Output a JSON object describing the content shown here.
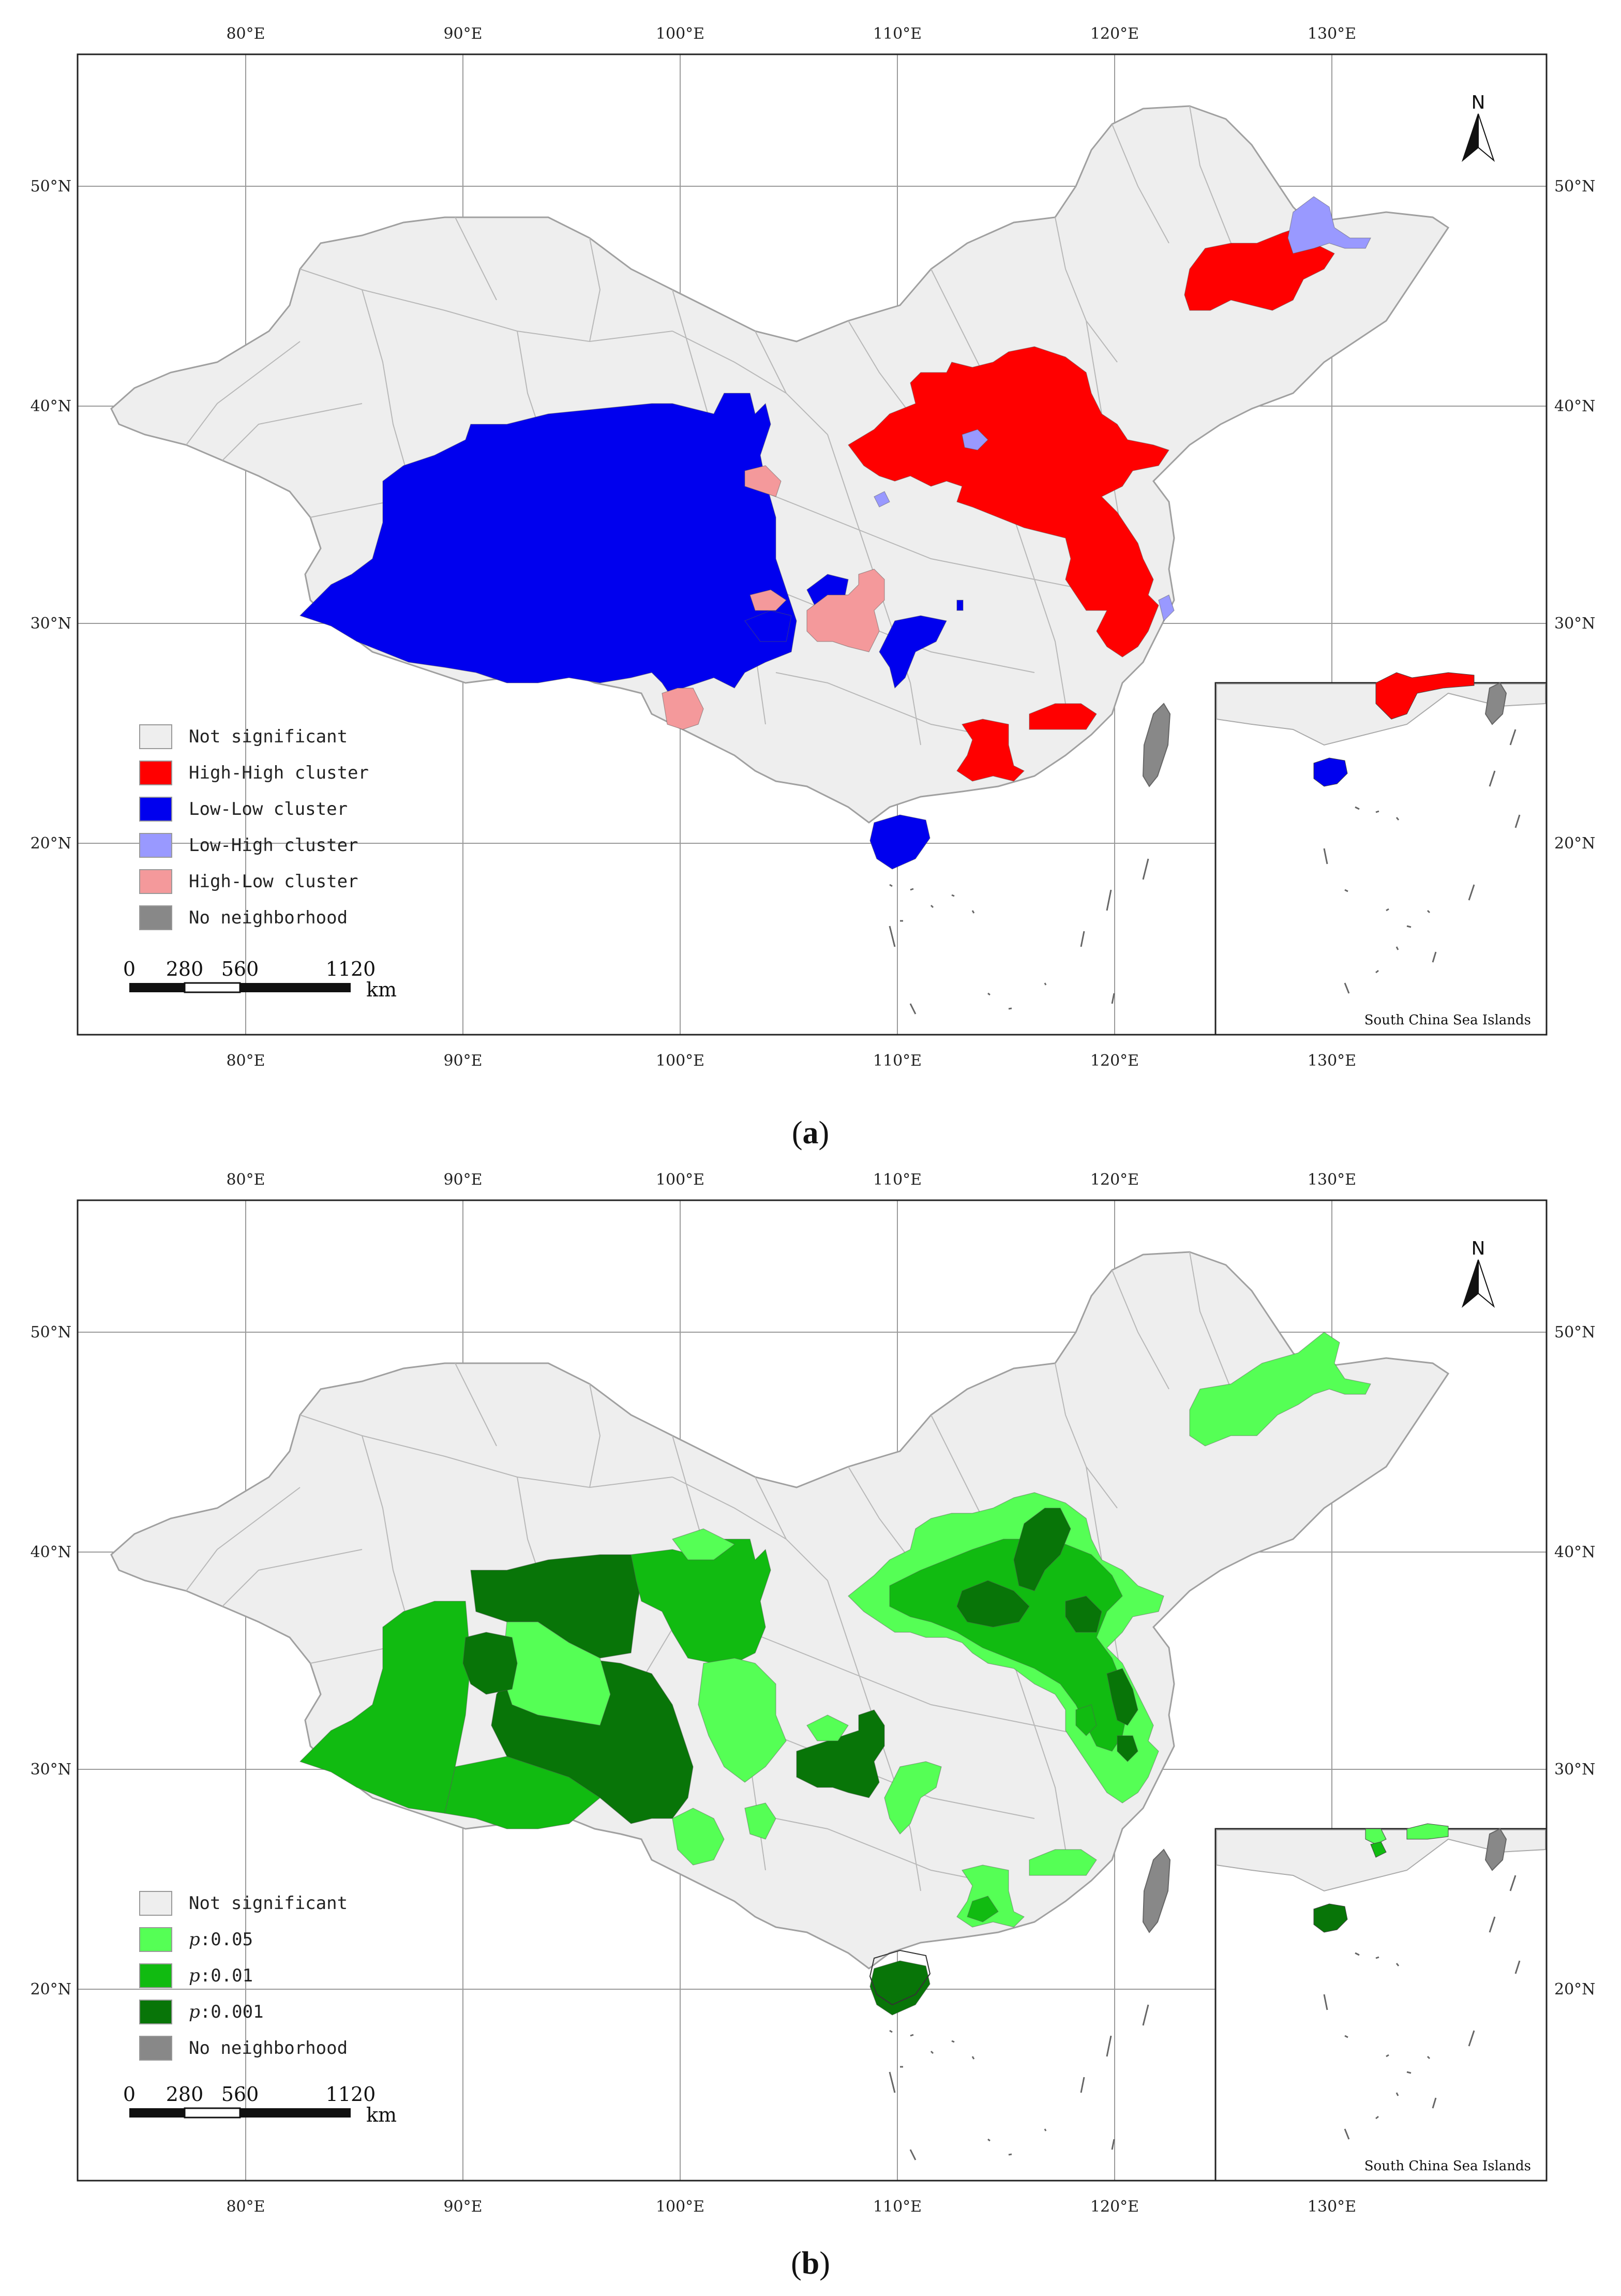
{
  "panels": [
    {
      "id": "a",
      "caption_letter": "a",
      "x_ticks": [
        "80°E",
        "90°E",
        "100°E",
        "110°E",
        "120°E",
        "130°E"
      ],
      "y_ticks": [
        "50°N",
        "40°N",
        "30°N",
        "20°N"
      ],
      "legend": [
        {
          "label": "Not significant",
          "color": "#eeeeee"
        },
        {
          "label": "High-High cluster",
          "color": "#ff0000"
        },
        {
          "label": "Low-Low cluster",
          "color": "#0000ee"
        },
        {
          "label": "Low-High cluster",
          "color": "#9999ff"
        },
        {
          "label": "High-Low cluster",
          "color": "#f4999b"
        },
        {
          "label": "No neighborhood",
          "color": "#888888"
        }
      ],
      "scale": {
        "ticks": [
          "0",
          "280",
          "560",
          "1120"
        ],
        "unit": "km"
      },
      "north_label": "N",
      "inset_label": "South China Sea Islands"
    },
    {
      "id": "b",
      "caption_letter": "b",
      "x_ticks": [
        "80°E",
        "90°E",
        "100°E",
        "110°E",
        "120°E",
        "130°E"
      ],
      "y_ticks": [
        "50°N",
        "40°N",
        "30°N",
        "20°N"
      ],
      "legend": [
        {
          "label": "Not significant",
          "color": "#eeeeee"
        },
        {
          "label_prefix": "p",
          "label_suffix": ":0.05",
          "color": "#55ff55"
        },
        {
          "label_prefix": "p",
          "label_suffix": ":0.01",
          "color": "#11bb11"
        },
        {
          "label_prefix": "p",
          "label_suffix": ":0.001",
          "color": "#087508"
        },
        {
          "label": "No neighborhood",
          "color": "#888888"
        }
      ],
      "scale": {
        "ticks": [
          "0",
          "280",
          "560",
          "1120"
        ],
        "unit": "km"
      },
      "north_label": "N",
      "inset_label": "South China Sea Islands"
    }
  ]
}
